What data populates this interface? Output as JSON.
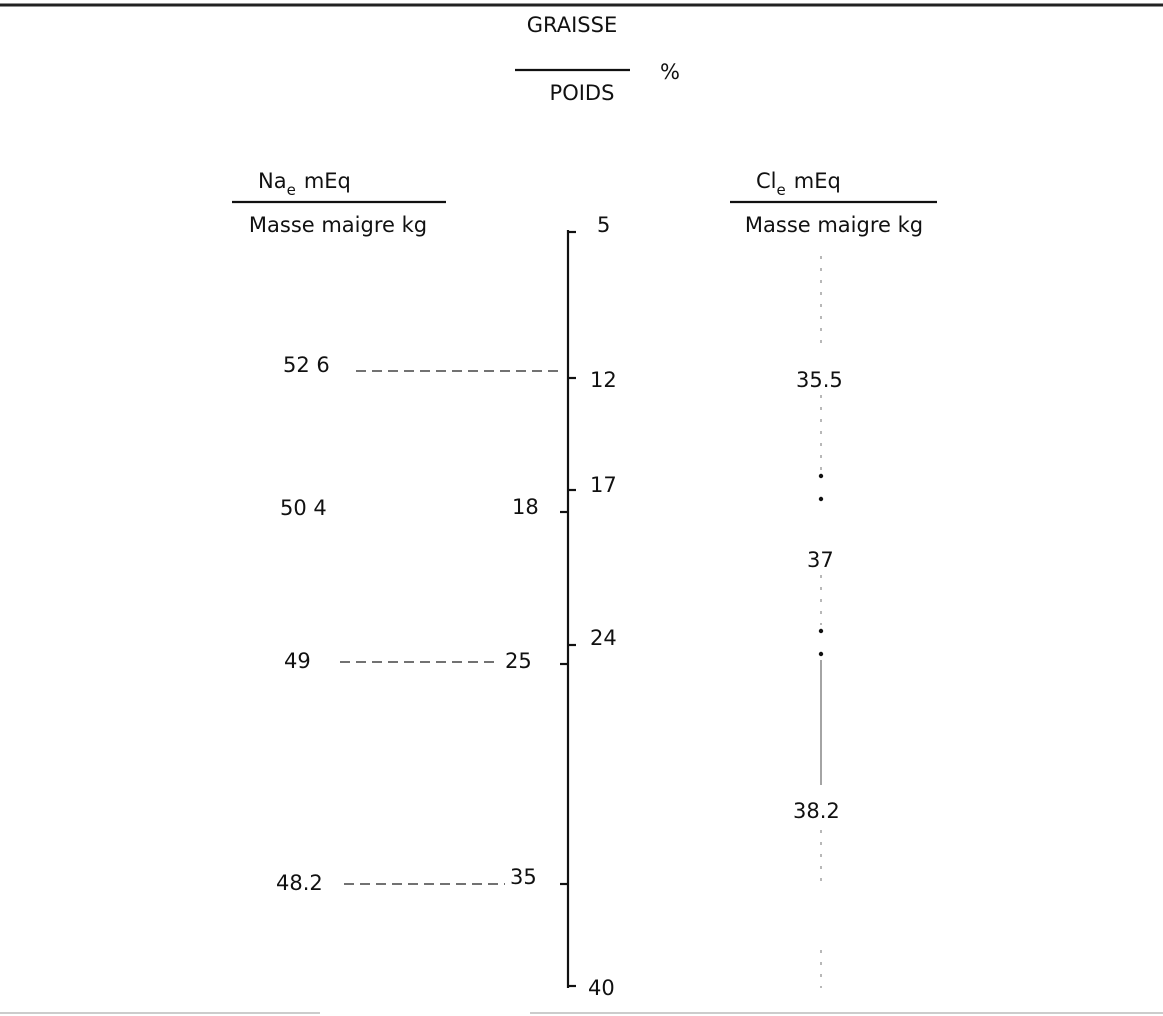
{
  "center_axis": {
    "numerator": "GRAISSE",
    "denominator": "POIDS",
    "unit": "%",
    "ticks_right": [
      "5",
      "12",
      "17",
      "24",
      "40"
    ],
    "ticks_left": [
      "18",
      "25",
      "35"
    ]
  },
  "left_axis": {
    "numerator": "Na",
    "subscript": "e",
    "numerator_unit": "mEq",
    "denominator": "Masse maigre kg",
    "values": [
      "52 6",
      "50 4",
      "49",
      "48.2"
    ]
  },
  "right_axis": {
    "numerator": "Cl",
    "subscript": "e",
    "numerator_unit": "mEq",
    "denominator": "Masse maigre kg",
    "values": [
      "35.5",
      "37",
      "38.2"
    ]
  }
}
